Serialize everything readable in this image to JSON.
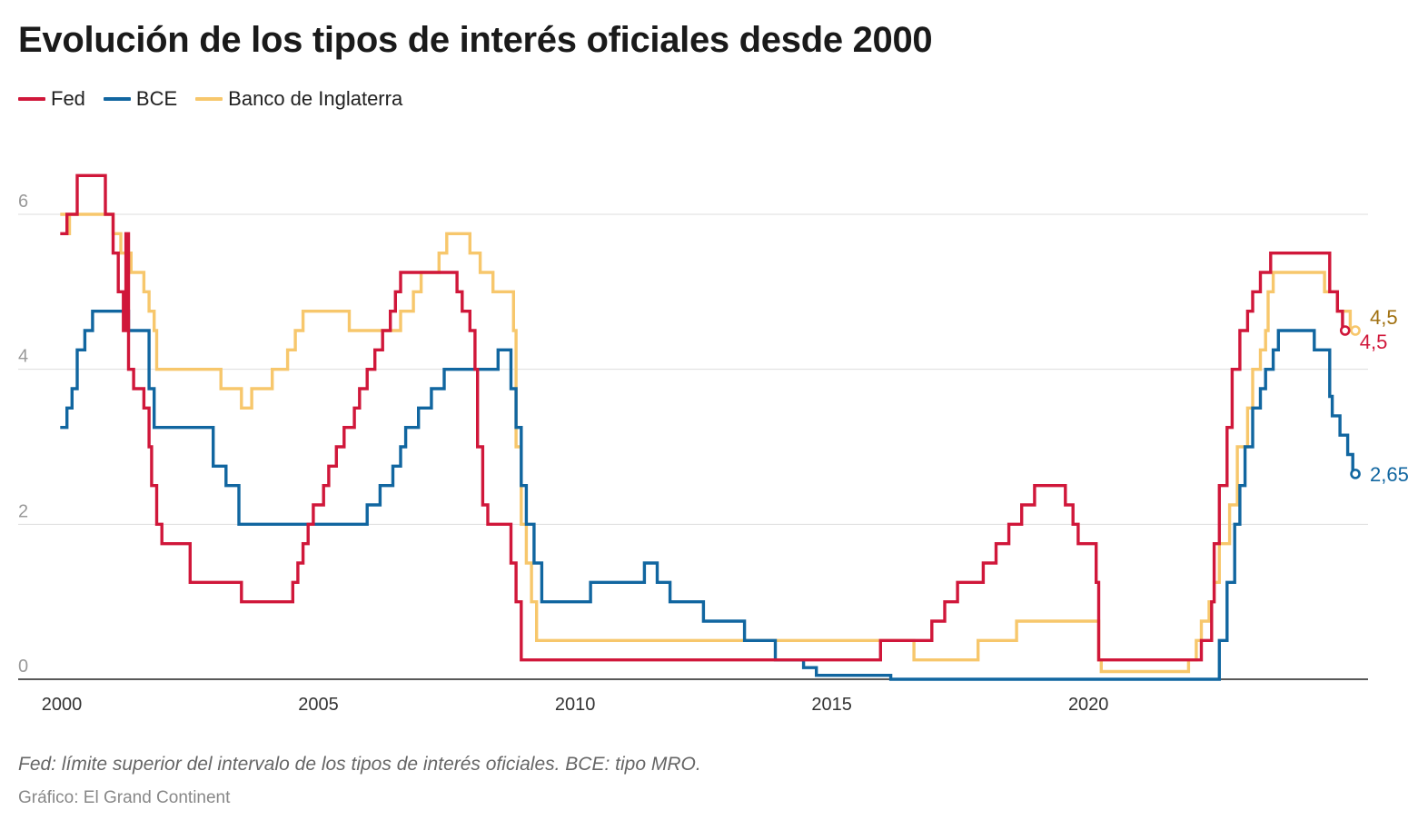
{
  "chart_data": {
    "type": "line",
    "title": "Evolución de los tipos de interés oficiales desde 2000",
    "note": "Fed: límite superior del intervalo de los tipos de interés oficiales. BCE: tipo MRO.",
    "source": "Gráfico: El Grand Continent",
    "x_range": [
      2000,
      2025.5
    ],
    "y_range": [
      0,
      6.6
    ],
    "y_ticks": [
      "0",
      "2",
      "4",
      "6"
    ],
    "x_ticks": [
      "2000",
      "2005",
      "2010",
      "2015",
      "2020"
    ],
    "grid": true,
    "legend_position": "top-left",
    "step": true,
    "series": [
      {
        "name": "Fed",
        "color": "#d0173a",
        "end_label": "4,5",
        "points": [
          [
            2000.0,
            5.75
          ],
          [
            2000.1,
            6.0
          ],
          [
            2000.3,
            6.5
          ],
          [
            2000.85,
            6.0
          ],
          [
            2001.0,
            5.5
          ],
          [
            2001.1,
            5.0
          ],
          [
            2001.2,
            4.5
          ],
          [
            2001.25,
            5.75
          ],
          [
            2001.3,
            4.0
          ],
          [
            2001.4,
            3.75
          ],
          [
            2001.6,
            3.5
          ],
          [
            2001.7,
            3.0
          ],
          [
            2001.75,
            2.5
          ],
          [
            2001.85,
            2.0
          ],
          [
            2001.95,
            1.75
          ],
          [
            2002.5,
            1.25
          ],
          [
            2003.5,
            1.0
          ],
          [
            2004.5,
            1.25
          ],
          [
            2004.6,
            1.5
          ],
          [
            2004.7,
            1.75
          ],
          [
            2004.8,
            2.0
          ],
          [
            2004.9,
            2.25
          ],
          [
            2005.1,
            2.5
          ],
          [
            2005.2,
            2.75
          ],
          [
            2005.35,
            3.0
          ],
          [
            2005.5,
            3.25
          ],
          [
            2005.7,
            3.5
          ],
          [
            2005.8,
            3.75
          ],
          [
            2005.95,
            4.0
          ],
          [
            2006.1,
            4.25
          ],
          [
            2006.25,
            4.5
          ],
          [
            2006.4,
            4.75
          ],
          [
            2006.5,
            5.0
          ],
          [
            2006.6,
            5.25
          ],
          [
            2007.7,
            5.0
          ],
          [
            2007.8,
            4.75
          ],
          [
            2007.95,
            4.5
          ],
          [
            2008.05,
            4.0
          ],
          [
            2008.1,
            3.0
          ],
          [
            2008.2,
            2.25
          ],
          [
            2008.3,
            2.0
          ],
          [
            2008.75,
            1.5
          ],
          [
            2008.85,
            1.0
          ],
          [
            2008.95,
            0.25
          ],
          [
            2015.95,
            0.5
          ],
          [
            2016.95,
            0.75
          ],
          [
            2017.2,
            1.0
          ],
          [
            2017.45,
            1.25
          ],
          [
            2017.95,
            1.5
          ],
          [
            2018.2,
            1.75
          ],
          [
            2018.45,
            2.0
          ],
          [
            2018.7,
            2.25
          ],
          [
            2018.95,
            2.5
          ],
          [
            2019.55,
            2.25
          ],
          [
            2019.7,
            2.0
          ],
          [
            2019.8,
            1.75
          ],
          [
            2020.15,
            1.25
          ],
          [
            2020.2,
            0.25
          ],
          [
            2022.2,
            0.5
          ],
          [
            2022.4,
            1.0
          ],
          [
            2022.45,
            1.75
          ],
          [
            2022.55,
            2.5
          ],
          [
            2022.7,
            3.25
          ],
          [
            2022.8,
            4.0
          ],
          [
            2022.95,
            4.5
          ],
          [
            2023.1,
            4.75
          ],
          [
            2023.2,
            5.0
          ],
          [
            2023.35,
            5.25
          ],
          [
            2023.55,
            5.5
          ],
          [
            2024.7,
            5.0
          ],
          [
            2024.85,
            4.75
          ],
          [
            2024.95,
            4.5
          ],
          [
            2025.0,
            4.5
          ]
        ]
      },
      {
        "name": "BCE",
        "color": "#1166a0",
        "end_label": "2,65",
        "points": [
          [
            2000.0,
            3.25
          ],
          [
            2000.1,
            3.5
          ],
          [
            2000.2,
            3.75
          ],
          [
            2000.3,
            4.25
          ],
          [
            2000.45,
            4.5
          ],
          [
            2000.6,
            4.75
          ],
          [
            2001.3,
            4.5
          ],
          [
            2001.7,
            3.75
          ],
          [
            2001.8,
            3.25
          ],
          [
            2002.95,
            2.75
          ],
          [
            2003.2,
            2.5
          ],
          [
            2003.45,
            2.0
          ],
          [
            2005.95,
            2.25
          ],
          [
            2006.2,
            2.5
          ],
          [
            2006.45,
            2.75
          ],
          [
            2006.6,
            3.0
          ],
          [
            2006.7,
            3.25
          ],
          [
            2006.95,
            3.5
          ],
          [
            2007.2,
            3.75
          ],
          [
            2007.45,
            4.0
          ],
          [
            2008.5,
            4.25
          ],
          [
            2008.75,
            3.75
          ],
          [
            2008.85,
            3.25
          ],
          [
            2008.95,
            2.5
          ],
          [
            2009.05,
            2.0
          ],
          [
            2009.2,
            1.5
          ],
          [
            2009.35,
            1.0
          ],
          [
            2010.3,
            1.25
          ],
          [
            2011.35,
            1.5
          ],
          [
            2011.6,
            1.25
          ],
          [
            2011.85,
            1.0
          ],
          [
            2012.5,
            0.75
          ],
          [
            2013.3,
            0.5
          ],
          [
            2013.9,
            0.25
          ],
          [
            2014.45,
            0.15
          ],
          [
            2014.7,
            0.05
          ],
          [
            2016.15,
            0.0
          ],
          [
            2022.55,
            0.5
          ],
          [
            2022.7,
            1.25
          ],
          [
            2022.85,
            2.0
          ],
          [
            2022.95,
            2.5
          ],
          [
            2023.05,
            3.0
          ],
          [
            2023.2,
            3.5
          ],
          [
            2023.35,
            3.75
          ],
          [
            2023.45,
            4.0
          ],
          [
            2023.6,
            4.25
          ],
          [
            2023.7,
            4.5
          ],
          [
            2024.4,
            4.25
          ],
          [
            2024.7,
            3.65
          ],
          [
            2024.75,
            3.4
          ],
          [
            2024.9,
            3.15
          ],
          [
            2025.05,
            2.9
          ],
          [
            2025.15,
            2.65
          ],
          [
            2025.2,
            2.65
          ]
        ]
      },
      {
        "name": "Banco de Inglaterra",
        "color": "#f7c76c",
        "end_label": "4,5",
        "points": [
          [
            2000.0,
            6.0
          ],
          [
            2000.1,
            5.75
          ],
          [
            2000.15,
            6.0
          ],
          [
            2001.0,
            5.75
          ],
          [
            2001.15,
            5.5
          ],
          [
            2001.35,
            5.25
          ],
          [
            2001.6,
            5.0
          ],
          [
            2001.7,
            4.75
          ],
          [
            2001.8,
            4.5
          ],
          [
            2001.85,
            4.0
          ],
          [
            2003.1,
            3.75
          ],
          [
            2003.5,
            3.5
          ],
          [
            2003.7,
            3.75
          ],
          [
            2004.1,
            4.0
          ],
          [
            2004.4,
            4.25
          ],
          [
            2004.55,
            4.5
          ],
          [
            2004.7,
            4.75
          ],
          [
            2005.6,
            4.5
          ],
          [
            2006.6,
            4.75
          ],
          [
            2006.85,
            5.0
          ],
          [
            2007.0,
            5.25
          ],
          [
            2007.35,
            5.5
          ],
          [
            2007.5,
            5.75
          ],
          [
            2007.95,
            5.5
          ],
          [
            2008.15,
            5.25
          ],
          [
            2008.4,
            5.0
          ],
          [
            2008.8,
            4.5
          ],
          [
            2008.85,
            3.0
          ],
          [
            2008.95,
            2.0
          ],
          [
            2009.05,
            1.5
          ],
          [
            2009.15,
            1.0
          ],
          [
            2009.25,
            0.5
          ],
          [
            2016.6,
            0.25
          ],
          [
            2017.85,
            0.5
          ],
          [
            2018.6,
            0.75
          ],
          [
            2020.2,
            0.25
          ],
          [
            2020.25,
            0.1
          ],
          [
            2021.95,
            0.25
          ],
          [
            2022.1,
            0.5
          ],
          [
            2022.2,
            0.75
          ],
          [
            2022.35,
            1.0
          ],
          [
            2022.45,
            1.25
          ],
          [
            2022.55,
            1.75
          ],
          [
            2022.75,
            2.25
          ],
          [
            2022.9,
            3.0
          ],
          [
            2023.1,
            3.5
          ],
          [
            2023.2,
            4.0
          ],
          [
            2023.35,
            4.25
          ],
          [
            2023.45,
            4.5
          ],
          [
            2023.5,
            5.0
          ],
          [
            2023.6,
            5.25
          ],
          [
            2024.6,
            5.0
          ],
          [
            2024.85,
            4.75
          ],
          [
            2025.1,
            4.5
          ],
          [
            2025.2,
            4.5
          ]
        ]
      }
    ]
  }
}
